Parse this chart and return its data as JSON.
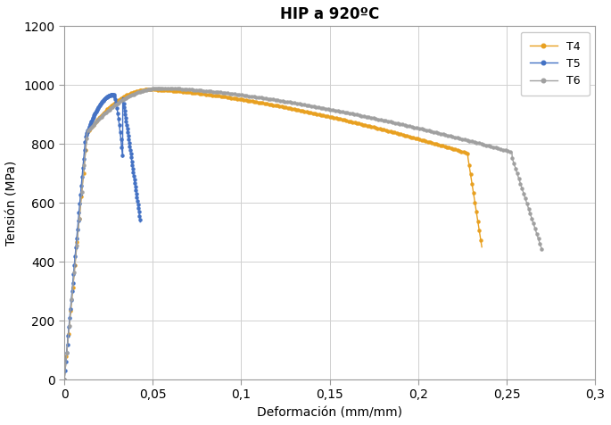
{
  "title": "HIP a 920ºC",
  "xlabel": "Deformación (mm/mm)",
  "ylabel": "Tensión (MPa)",
  "xlim": [
    0,
    0.3
  ],
  "ylim": [
    0,
    1200
  ],
  "xticks": [
    0,
    0.05,
    0.1,
    0.15,
    0.2,
    0.25,
    0.3
  ],
  "xtick_labels": [
    "0",
    "0,05",
    "0,1",
    "0,15",
    "0,2",
    "0,25",
    "0,3"
  ],
  "yticks": [
    0,
    200,
    400,
    600,
    800,
    1000,
    1200
  ],
  "colors": {
    "T4": "#E8A020",
    "T5": "#4472C4",
    "T6": "#A0A0A0"
  },
  "background_color": "#FFFFFF",
  "grid_color": "#D0D0D0",
  "title_fontsize": 12,
  "label_fontsize": 10,
  "tick_fontsize": 10
}
